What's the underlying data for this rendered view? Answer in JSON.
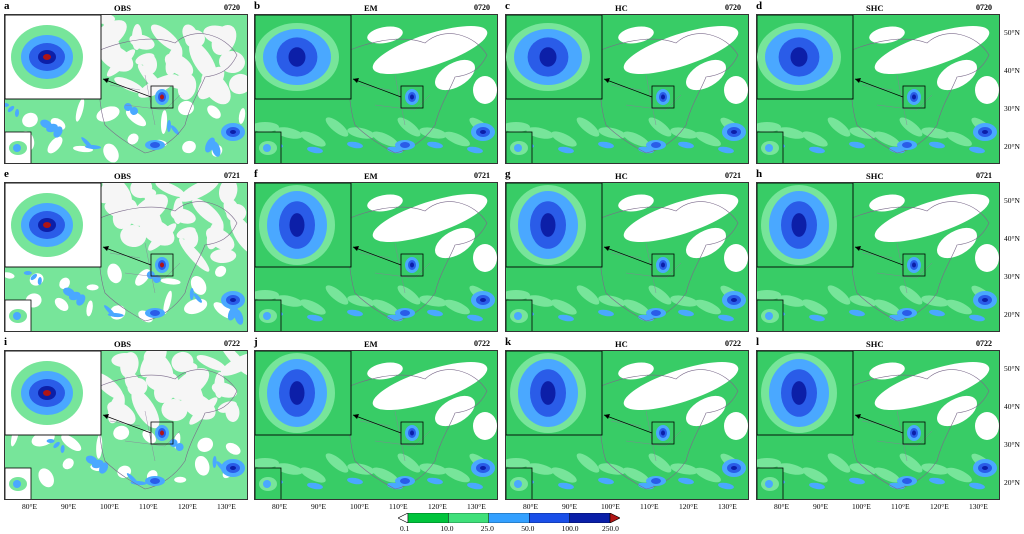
{
  "panels": [
    {
      "letter": "a",
      "title": "OBS",
      "date": "0720",
      "type": "obs",
      "row": 0,
      "col": 0
    },
    {
      "letter": "b",
      "title": "EM",
      "date": "0720",
      "type": "model",
      "row": 0,
      "col": 1
    },
    {
      "letter": "c",
      "title": "HC",
      "date": "0720",
      "type": "model",
      "row": 0,
      "col": 2
    },
    {
      "letter": "d",
      "title": "SHC",
      "date": "0720",
      "type": "model",
      "row": 0,
      "col": 3
    },
    {
      "letter": "e",
      "title": "OBS",
      "date": "0721",
      "type": "obs",
      "row": 1,
      "col": 0
    },
    {
      "letter": "f",
      "title": "EM",
      "date": "0721",
      "type": "model",
      "row": 1,
      "col": 1
    },
    {
      "letter": "g",
      "title": "HC",
      "date": "0721",
      "type": "model",
      "row": 1,
      "col": 2
    },
    {
      "letter": "h",
      "title": "SHC",
      "date": "0721",
      "type": "model",
      "row": 1,
      "col": 3
    },
    {
      "letter": "i",
      "title": "OBS",
      "date": "0722",
      "type": "obs",
      "row": 2,
      "col": 0
    },
    {
      "letter": "j",
      "title": "EM",
      "date": "0722",
      "type": "model",
      "row": 2,
      "col": 1
    },
    {
      "letter": "k",
      "title": "HC",
      "date": "0722",
      "type": "model",
      "row": 2,
      "col": 2
    },
    {
      "letter": "l",
      "title": "SHC",
      "date": "0722",
      "type": "model",
      "row": 2,
      "col": 3
    }
  ],
  "lat_labels": [
    "50°N",
    "40°N",
    "30°N",
    "20°N"
  ],
  "lon_labels": [
    "80°E",
    "90°E",
    "100°E",
    "110°E",
    "120°E",
    "130°E"
  ],
  "colorbar": {
    "labels": [
      "0.1",
      "10.0",
      "25.0",
      "50.0",
      "100.0",
      "250.0"
    ],
    "colors": [
      "#ffffff",
      "#00c43c",
      "#3fe07a",
      "#33a0ff",
      "#1a4fe8",
      "#0a1fa8",
      "#b01515"
    ]
  },
  "colors": {
    "field_light": "#77e59a",
    "field_mid": "#38cc66",
    "field_dark": "#18b24a",
    "rain_light": "#4aa8ff",
    "rain_mid": "#2a5ce8",
    "rain_dark": "#0c1fa8",
    "extreme": "#b01515",
    "land_dry": "#f6f6f6"
  }
}
